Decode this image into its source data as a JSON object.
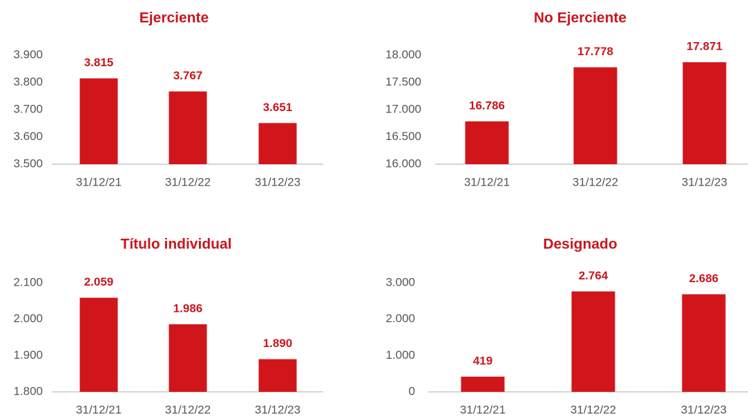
{
  "chart_data": [
    {
      "type": "bar",
      "title": "Ejerciente",
      "categories": [
        "31/12/21",
        "31/12/22",
        "31/12/23"
      ],
      "values": [
        3815,
        3767,
        3651
      ],
      "value_labels": [
        "3.815",
        "3.767",
        "3.651"
      ],
      "color": "#d0161b",
      "ylim": [
        3500,
        3900
      ],
      "yticks": [
        {
          "value": 3500,
          "label": "3.500"
        },
        {
          "value": 3600,
          "label": "3.600"
        },
        {
          "value": 3700,
          "label": "3.700"
        },
        {
          "value": 3800,
          "label": "3.800"
        },
        {
          "value": 3900,
          "label": "3.900"
        }
      ],
      "grid": false
    },
    {
      "type": "bar",
      "title": "No Ejerciente",
      "categories": [
        "31/12/21",
        "31/12/22",
        "31/12/23"
      ],
      "values": [
        16786,
        17778,
        17871
      ],
      "value_labels": [
        "16.786",
        "17.778",
        "17.871"
      ],
      "color": "#d0161b",
      "ylim": [
        16000,
        18000
      ],
      "yticks": [
        {
          "value": 16000,
          "label": "16.000"
        },
        {
          "value": 16500,
          "label": "16.500"
        },
        {
          "value": 17000,
          "label": "17.000"
        },
        {
          "value": 17500,
          "label": "17.500"
        },
        {
          "value": 18000,
          "label": "18.000"
        }
      ],
      "grid": false
    },
    {
      "type": "bar",
      "title": "Título individual",
      "categories": [
        "31/12/21",
        "31/12/22",
        "31/12/23"
      ],
      "values": [
        2059,
        1986,
        1890
      ],
      "value_labels": [
        "2.059",
        "1.986",
        "1.890"
      ],
      "color": "#d0161b",
      "ylim": [
        1800,
        2100
      ],
      "yticks": [
        {
          "value": 1800,
          "label": "1.800"
        },
        {
          "value": 1900,
          "label": "1.900"
        },
        {
          "value": 2000,
          "label": "2.000"
        },
        {
          "value": 2100,
          "label": "2.100"
        }
      ],
      "grid": false
    },
    {
      "type": "bar",
      "title": "Designado",
      "categories": [
        "31/12/21",
        "31/12/22",
        "31/12/23"
      ],
      "values": [
        419,
        2764,
        2686
      ],
      "value_labels": [
        "419",
        "2.764",
        "2.686"
      ],
      "color": "#d0161b",
      "ylim": [
        0,
        3000
      ],
      "yticks": [
        0,
        {
          "value": 1000,
          "label": "1.000"
        },
        {
          "value": 2000,
          "label": "2.000"
        },
        {
          "value": 3000,
          "label": "3.000"
        }
      ],
      "grid": false
    }
  ]
}
